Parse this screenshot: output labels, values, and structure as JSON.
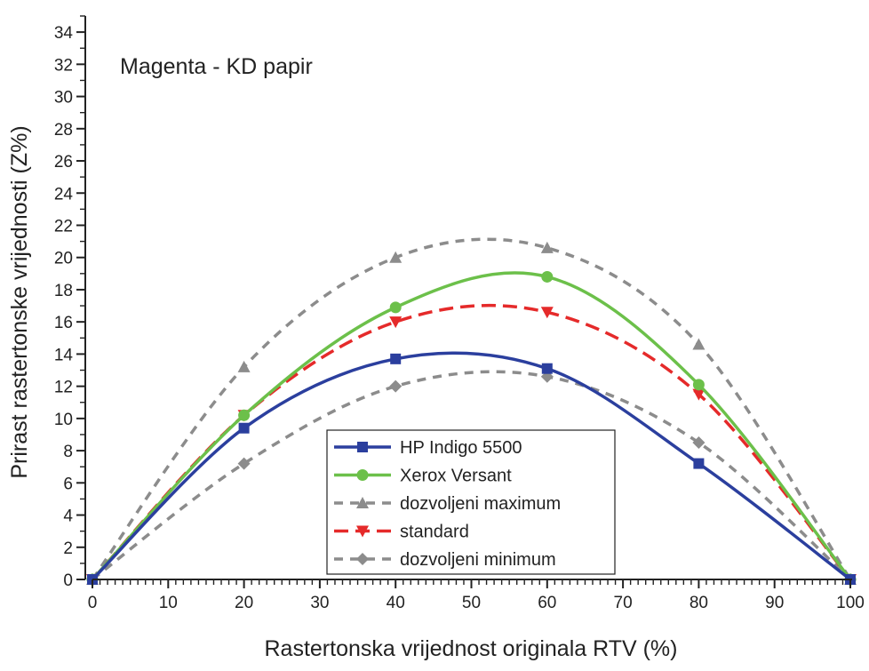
{
  "chart_data": {
    "type": "line",
    "title": "",
    "annotation": "Magenta - KD papir",
    "xlabel": "Rastertonska vrijednost originala RTV (%)",
    "ylabel": "Prirast rastertonske vrijednosti (Z%)",
    "xlim": [
      0,
      100
    ],
    "ylim": [
      0,
      35
    ],
    "xticks": [
      "0",
      "10",
      "20",
      "30",
      "40",
      "50",
      "60",
      "70",
      "80",
      "90",
      "100"
    ],
    "yticks": [
      "0",
      "2",
      "4",
      "6",
      "8",
      "10",
      "12",
      "14",
      "16",
      "18",
      "20",
      "22",
      "24",
      "26",
      "28",
      "30",
      "32",
      "34"
    ],
    "grid": false,
    "legend_position": "bottom-center",
    "series": [
      {
        "name": "HP Indigo 5500",
        "color": "#2b3f9e",
        "style": "solid",
        "marker": "square",
        "x": [
          0,
          20,
          40,
          60,
          80,
          100
        ],
        "y": [
          0,
          9.4,
          13.7,
          13.1,
          7.2,
          0
        ]
      },
      {
        "name": "Xerox Versant",
        "color": "#6cc04a",
        "style": "solid",
        "marker": "circle",
        "x": [
          0,
          20,
          40,
          60,
          80,
          100
        ],
        "y": [
          0,
          10.2,
          16.9,
          18.8,
          12.1,
          0
        ]
      },
      {
        "name": "dozvoljeni maximum",
        "color": "#8c8c8c",
        "style": "dashed",
        "marker": "triangle-up",
        "x": [
          0,
          20,
          40,
          60,
          80,
          100
        ],
        "y": [
          0,
          13.2,
          20,
          20.6,
          14.6,
          0
        ]
      },
      {
        "name": "standard",
        "color": "#e52a2a",
        "style": "dashed",
        "marker": "triangle-down",
        "x": [
          0,
          20,
          40,
          60,
          80,
          100
        ],
        "y": [
          0,
          10.2,
          16,
          16.6,
          11.5,
          0
        ]
      },
      {
        "name": "dozvoljeni minimum",
        "color": "#8c8c8c",
        "style": "dashed",
        "marker": "diamond",
        "x": [
          0,
          20,
          40,
          60,
          80,
          100
        ],
        "y": [
          0,
          7.2,
          12,
          12.6,
          8.5,
          0
        ]
      }
    ]
  }
}
